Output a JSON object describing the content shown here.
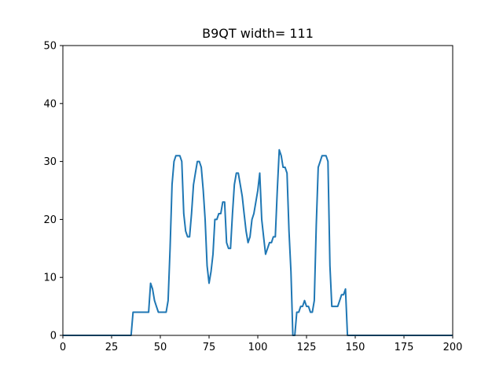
{
  "chart_data": {
    "type": "line",
    "title": "B9QT width= 111",
    "xlabel": "",
    "ylabel": "",
    "xlim": [
      0,
      200
    ],
    "ylim": [
      0,
      50
    ],
    "x_ticks": [
      "0",
      "25",
      "50",
      "75",
      "100",
      "125",
      "150",
      "175",
      "200"
    ],
    "y_ticks": [
      "0",
      "10",
      "20",
      "30",
      "40",
      "50"
    ],
    "grid": false,
    "series": [
      {
        "color": "#1f77b4",
        "points": [
          [
            0,
            0
          ],
          [
            35,
            0
          ],
          [
            36,
            4
          ],
          [
            44,
            4
          ],
          [
            45,
            9
          ],
          [
            46,
            8
          ],
          [
            47,
            6
          ],
          [
            48,
            5
          ],
          [
            49,
            4
          ],
          [
            52,
            4
          ],
          [
            53,
            4
          ],
          [
            54,
            6
          ],
          [
            55,
            15
          ],
          [
            56,
            26
          ],
          [
            57,
            30
          ],
          [
            58,
            31
          ],
          [
            60,
            31
          ],
          [
            61,
            30
          ],
          [
            62,
            21
          ],
          [
            63,
            18
          ],
          [
            64,
            17
          ],
          [
            65,
            17
          ],
          [
            66,
            21
          ],
          [
            67,
            26
          ],
          [
            68,
            28
          ],
          [
            69,
            30
          ],
          [
            70,
            30
          ],
          [
            71,
            29
          ],
          [
            72,
            25
          ],
          [
            73,
            20
          ],
          [
            74,
            12
          ],
          [
            75,
            9
          ],
          [
            76,
            11
          ],
          [
            77,
            14
          ],
          [
            78,
            20
          ],
          [
            79,
            20
          ],
          [
            80,
            21
          ],
          [
            81,
            21
          ],
          [
            82,
            23
          ],
          [
            83,
            23
          ],
          [
            84,
            16
          ],
          [
            85,
            15
          ],
          [
            86,
            15
          ],
          [
            87,
            21
          ],
          [
            88,
            26
          ],
          [
            89,
            28
          ],
          [
            90,
            28
          ],
          [
            91,
            26
          ],
          [
            92,
            24
          ],
          [
            93,
            21
          ],
          [
            94,
            18
          ],
          [
            95,
            16
          ],
          [
            96,
            17
          ],
          [
            97,
            20
          ],
          [
            98,
            21
          ],
          [
            99,
            23
          ],
          [
            100,
            25
          ],
          [
            101,
            28
          ],
          [
            102,
            20
          ],
          [
            103,
            17
          ],
          [
            104,
            14
          ],
          [
            105,
            15
          ],
          [
            106,
            16
          ],
          [
            107,
            16
          ],
          [
            108,
            17
          ],
          [
            109,
            17
          ],
          [
            110,
            25
          ],
          [
            111,
            32
          ],
          [
            112,
            31
          ],
          [
            113,
            29
          ],
          [
            114,
            29
          ],
          [
            115,
            28
          ],
          [
            116,
            18
          ],
          [
            117,
            11
          ],
          [
            118,
            0
          ],
          [
            119,
            0
          ],
          [
            120,
            4
          ],
          [
            121,
            4
          ],
          [
            122,
            5
          ],
          [
            123,
            5
          ],
          [
            124,
            6
          ],
          [
            125,
            5
          ],
          [
            126,
            5
          ],
          [
            127,
            4
          ],
          [
            128,
            4
          ],
          [
            129,
            6
          ],
          [
            130,
            19
          ],
          [
            131,
            29
          ],
          [
            132,
            30
          ],
          [
            133,
            31
          ],
          [
            134,
            31
          ],
          [
            135,
            31
          ],
          [
            136,
            30
          ],
          [
            137,
            12
          ],
          [
            138,
            5
          ],
          [
            139,
            5
          ],
          [
            140,
            5
          ],
          [
            141,
            5
          ],
          [
            142,
            6
          ],
          [
            143,
            7
          ],
          [
            144,
            7
          ],
          [
            145,
            8
          ],
          [
            146,
            0
          ],
          [
            200,
            0
          ]
        ]
      }
    ]
  }
}
